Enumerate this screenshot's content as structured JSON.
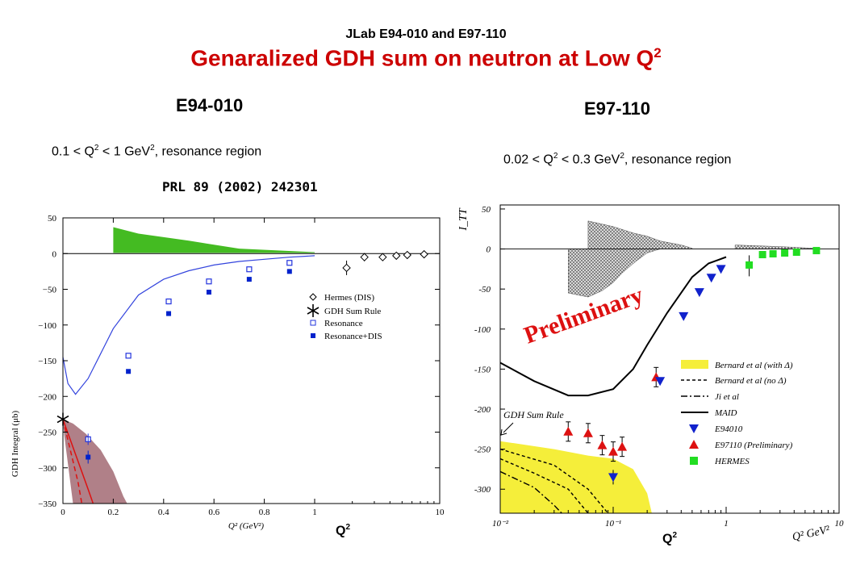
{
  "header": {
    "experiments": "JLab E94-010 and E97-110",
    "title": "Genaralized GDH sum on neutron at Low Q",
    "title_sup": "2"
  },
  "left_panel": {
    "experiment": "E94-010",
    "range_prefix": "0.1 < Q",
    "range_mid": " < 1 GeV",
    "range_suffix": ", resonance region",
    "reference": "PRL 89 (2002) 242301",
    "q_label": "Q",
    "q_sup": "2"
  },
  "right_panel": {
    "experiment": "E97-110",
    "range_prefix": "0.02 < Q",
    "range_mid": " < 0.3 GeV",
    "range_suffix": ", resonance region",
    "q_label": "Q",
    "q_sup": "2"
  },
  "chart_data": [
    {
      "type": "scatter",
      "ylabel": "GDH Integral (μb)",
      "xlabel": "Q² (GeV²)",
      "xlim": [
        0,
        10
      ],
      "x_scale": "linear 0–1, log 1–10",
      "ylim": [
        -350,
        50
      ],
      "x_tick_labels": [
        "0",
        "0.2",
        "0.4",
        "0.6",
        "0.8",
        "1",
        "10"
      ],
      "y_tick_labels": [
        "50",
        "0",
        "−50",
        "−100",
        "−150",
        "−200",
        "−250",
        "−300",
        "−350"
      ],
      "legend": [
        "Hermes (DIS)",
        "GDH Sum Rule",
        "Resonance",
        "Resonance+DIS"
      ],
      "legend_position": "right",
      "series": [
        {
          "name": "Resonance",
          "marker": "open-square",
          "color": "#2233dd",
          "x": [
            0.1,
            0.26,
            0.42,
            0.58,
            0.74,
            0.9
          ],
          "y": [
            -260,
            -143,
            -67,
            -39,
            -22,
            -13
          ]
        },
        {
          "name": "Resonance+DIS",
          "marker": "filled-square",
          "color": "#0022cc",
          "x": [
            0.1,
            0.26,
            0.42,
            0.58,
            0.74,
            0.9
          ],
          "y": [
            -285,
            -165,
            -84,
            -54,
            -36,
            -25
          ]
        },
        {
          "name": "Hermes (DIS)",
          "marker": "open-diamond",
          "color": "#000000",
          "x": [
            1.8,
            2.5,
            3.5,
            4.5,
            5.5,
            7.5
          ],
          "y": [
            -20,
            -5,
            -5,
            -3,
            -2,
            -1
          ]
        },
        {
          "name": "GDH Sum Rule",
          "marker": "asterisk",
          "color": "#000000",
          "x": [
            0
          ],
          "y": [
            -232
          ]
        },
        {
          "name": "MAID (curve)",
          "color": "#3344dd",
          "x": [
            0.0,
            0.02,
            0.05,
            0.1,
            0.15,
            0.2,
            0.3,
            0.4,
            0.5,
            0.6,
            0.7,
            0.8,
            0.9,
            1.0
          ],
          "y": [
            -145,
            -182,
            -197,
            -175,
            -140,
            -105,
            -58,
            -36,
            -24,
            -16,
            -11,
            -8,
            -5,
            -3
          ]
        }
      ],
      "bands": [
        {
          "name": "systematic error (top)",
          "color": "#44bb22",
          "x": [
            0.2,
            0.3,
            0.5,
            0.7,
            1.0
          ],
          "y_upper": [
            37,
            28,
            18,
            7,
            2
          ],
          "y_lower": [
            1,
            1,
            1,
            1,
            1
          ]
        },
        {
          "name": "theory band (bottom-left)",
          "color": "#b08088"
        }
      ]
    },
    {
      "type": "scatter",
      "ylabel": "I_TT",
      "xlabel": "Q² GeV²",
      "x_scale": "log",
      "xlim": [
        0.01,
        10
      ],
      "ylim": [
        -330,
        55
      ],
      "x_tick_labels": [
        "10⁻²",
        "10⁻¹",
        "1",
        "10"
      ],
      "y_tick_labels": [
        "50",
        "0",
        "-50",
        "-100",
        "-150",
        "-200",
        "-250",
        "-300"
      ],
      "annotation_watermark": "Preliminary",
      "annotation_arrow": "GDH Sum Rule",
      "legend": [
        "Bernard et al (with Δ)",
        "Bernard et al (no Δ)",
        "Ji et al",
        "MAID",
        "E94010",
        "E97110 (Preliminary)",
        "HERMES"
      ],
      "legend_position": "bottom-right",
      "series": [
        {
          "name": "E94010",
          "marker": "triangle-down",
          "color": "#1122cc",
          "x": [
            0.1,
            0.26,
            0.42,
            0.58,
            0.74,
            0.9
          ],
          "y": [
            -285,
            -165,
            -84,
            -54,
            -36,
            -25
          ]
        },
        {
          "name": "E97110 (Preliminary)",
          "marker": "triangle-up",
          "color": "#dd1111",
          "x": [
            0.04,
            0.06,
            0.08,
            0.1,
            0.12,
            0.24
          ],
          "y": [
            -228,
            -230,
            -245,
            -253,
            -247,
            -160
          ]
        },
        {
          "name": "HERMES",
          "marker": "square",
          "color": "#22dd22",
          "x": [
            1.6,
            2.1,
            2.6,
            3.3,
            4.2,
            6.3
          ],
          "y": [
            -20,
            -7,
            -6,
            -5,
            -4,
            -2
          ]
        },
        {
          "name": "MAID",
          "color": "#000000",
          "x": [
            0.01,
            0.02,
            0.04,
            0.06,
            0.1,
            0.15,
            0.2,
            0.3,
            0.5,
            0.7,
            1.0
          ],
          "y": [
            -142,
            -165,
            -183,
            -183,
            -175,
            -150,
            -120,
            -80,
            -35,
            -18,
            -10
          ]
        }
      ]
    }
  ]
}
